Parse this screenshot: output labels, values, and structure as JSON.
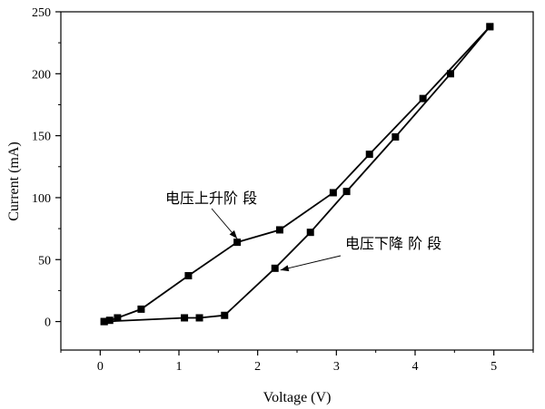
{
  "chart_data": {
    "type": "line",
    "xlabel": "Voltage (V)",
    "ylabel": "Current (mA)",
    "xlim": [
      -0.5,
      5.5
    ],
    "ylim": [
      -23,
      250
    ],
    "xticks": [
      0,
      1,
      2,
      3,
      4,
      5
    ],
    "yticks": [
      0,
      50,
      100,
      150,
      200,
      250
    ],
    "grid": false,
    "marker": "square",
    "series": [
      {
        "name": "电压上升阶段",
        "x": [
          0.05,
          0.12,
          0.22,
          0.52,
          1.12,
          1.74,
          2.28,
          2.96,
          3.42,
          4.1,
          4.95
        ],
        "y": [
          0,
          1,
          3,
          10,
          37,
          64,
          74,
          104,
          135,
          180,
          238
        ]
      },
      {
        "name": "电压下降阶段",
        "x": [
          0.05,
          1.07,
          1.26,
          1.58,
          2.22,
          2.67,
          3.13,
          3.75,
          4.45,
          4.95
        ],
        "y": [
          0,
          3,
          3,
          5,
          43,
          72,
          105,
          149,
          200,
          238
        ]
      }
    ],
    "annotations": [
      {
        "text": "电压上升阶 段",
        "series": 0,
        "point": 5
      },
      {
        "text": "电压下降 阶 段",
        "series": 1,
        "point": 4
      }
    ]
  }
}
